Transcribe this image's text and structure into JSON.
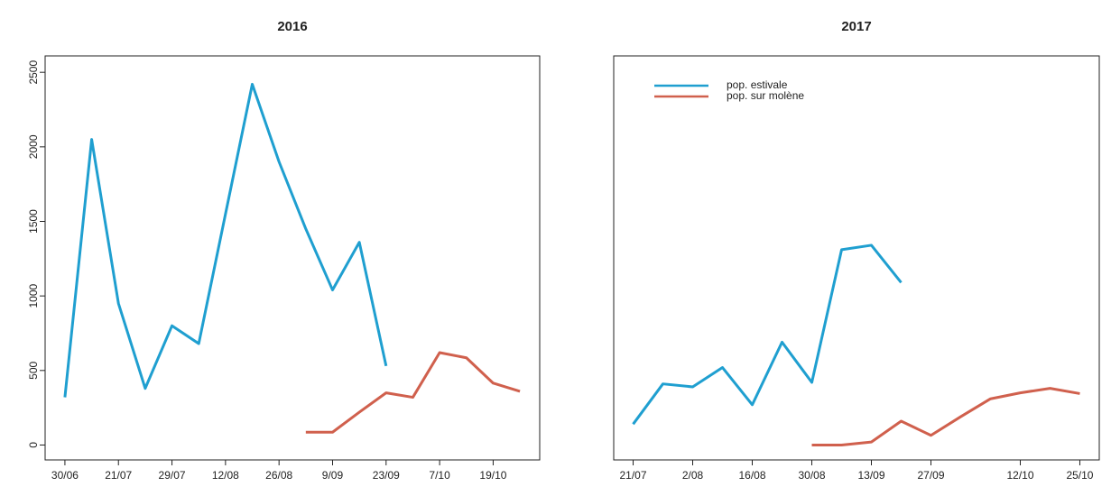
{
  "chart_data": [
    {
      "type": "line",
      "title": "2016",
      "categories": [
        "30/06",
        null,
        "21/07",
        null,
        "29/07",
        null,
        "12/08",
        null,
        "26/08",
        null,
        "9/09",
        null,
        "23/09",
        null,
        "7/10",
        null,
        "19/10",
        null
      ],
      "series": [
        {
          "name": "pop. estivale",
          "color": "#1f9fd0",
          "values": [
            320,
            2050,
            950,
            380,
            800,
            680,
            1550,
            2420,
            1900,
            1450,
            1040,
            1360,
            530,
            null,
            null,
            null,
            null,
            null
          ]
        },
        {
          "name": "pop. sur molène",
          "color": "#d0604d",
          "values": [
            null,
            null,
            null,
            null,
            null,
            null,
            null,
            null,
            null,
            86,
            86,
            220,
            350,
            320,
            620,
            585,
            415,
            360
          ]
        }
      ],
      "ylim": [
        -100,
        2610
      ],
      "yticks": [
        0,
        500,
        1000,
        1500,
        2000,
        2500
      ]
    },
    {
      "type": "line",
      "title": "2017",
      "categories": [
        "21/07",
        null,
        "2/08",
        null,
        "16/08",
        null,
        "30/08",
        null,
        "13/09",
        null,
        "27/09",
        null,
        null,
        "12/10",
        null,
        "25/10"
      ],
      "series": [
        {
          "name": "pop. estivale",
          "color": "#1f9fd0",
          "values": [
            140,
            410,
            390,
            520,
            270,
            690,
            420,
            1310,
            1340,
            1090,
            null,
            null,
            null,
            null,
            null,
            null
          ]
        },
        {
          "name": "pop. sur molène",
          "color": "#d0604d",
          "values": [
            null,
            null,
            null,
            null,
            null,
            null,
            0,
            0,
            20,
            160,
            65,
            190,
            310,
            350,
            380,
            345
          ]
        }
      ],
      "ylim": [
        -100,
        2610
      ],
      "legend": "top-left"
    }
  ]
}
